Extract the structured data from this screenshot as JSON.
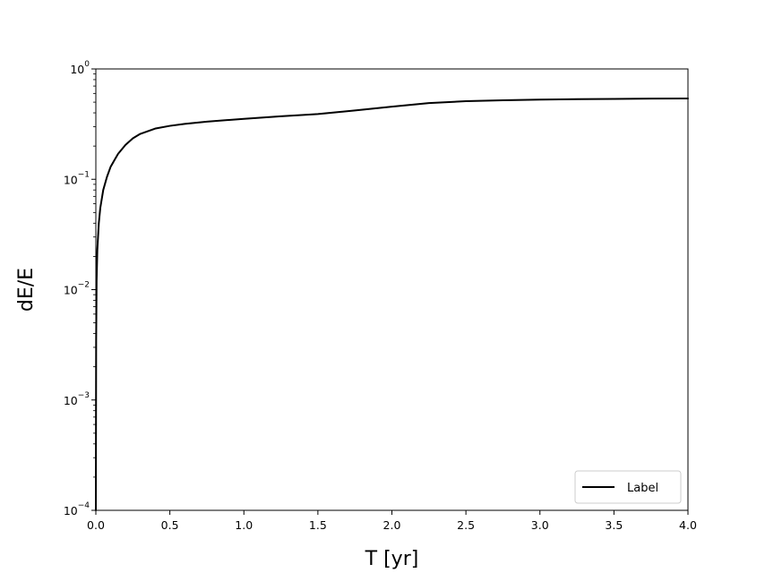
{
  "chart_data": {
    "type": "line",
    "xlabel": "T [yr]",
    "ylabel": "dE/E",
    "xlim": [
      0.0,
      4.0
    ],
    "ylim": [
      0.0001,
      1
    ],
    "yscale": "log",
    "xticks": [
      "0.0",
      "0.5",
      "1.0",
      "1.5",
      "2.0",
      "2.5",
      "3.0",
      "3.5",
      "4.0"
    ],
    "yticks": [
      {
        "base": "10",
        "exp": "−4"
      },
      {
        "base": "10",
        "exp": "−3"
      },
      {
        "base": "10",
        "exp": "−2"
      },
      {
        "base": "10",
        "exp": "−1"
      },
      {
        "base": "10",
        "exp": "0"
      }
    ],
    "grid": false,
    "legend": {
      "location": "lower-right",
      "entries": [
        "Label"
      ]
    },
    "series": [
      {
        "name": "Label",
        "color": "#000000",
        "x": [
          0.0,
          0.002,
          0.005,
          0.01,
          0.02,
          0.03,
          0.05,
          0.075,
          0.1,
          0.15,
          0.2,
          0.25,
          0.3,
          0.4,
          0.5,
          0.6,
          0.75,
          1.0,
          1.25,
          1.5,
          1.75,
          2.0,
          2.25,
          2.5,
          2.75,
          3.0,
          3.25,
          3.5,
          3.75,
          4.0
        ],
        "y": [
          0.0001,
          0.0035,
          0.012,
          0.023,
          0.04,
          0.055,
          0.08,
          0.105,
          0.13,
          0.17,
          0.205,
          0.235,
          0.258,
          0.288,
          0.305,
          0.318,
          0.333,
          0.353,
          0.372,
          0.39,
          0.42,
          0.455,
          0.49,
          0.51,
          0.52,
          0.527,
          0.532,
          0.535,
          0.538,
          0.54
        ]
      }
    ]
  }
}
